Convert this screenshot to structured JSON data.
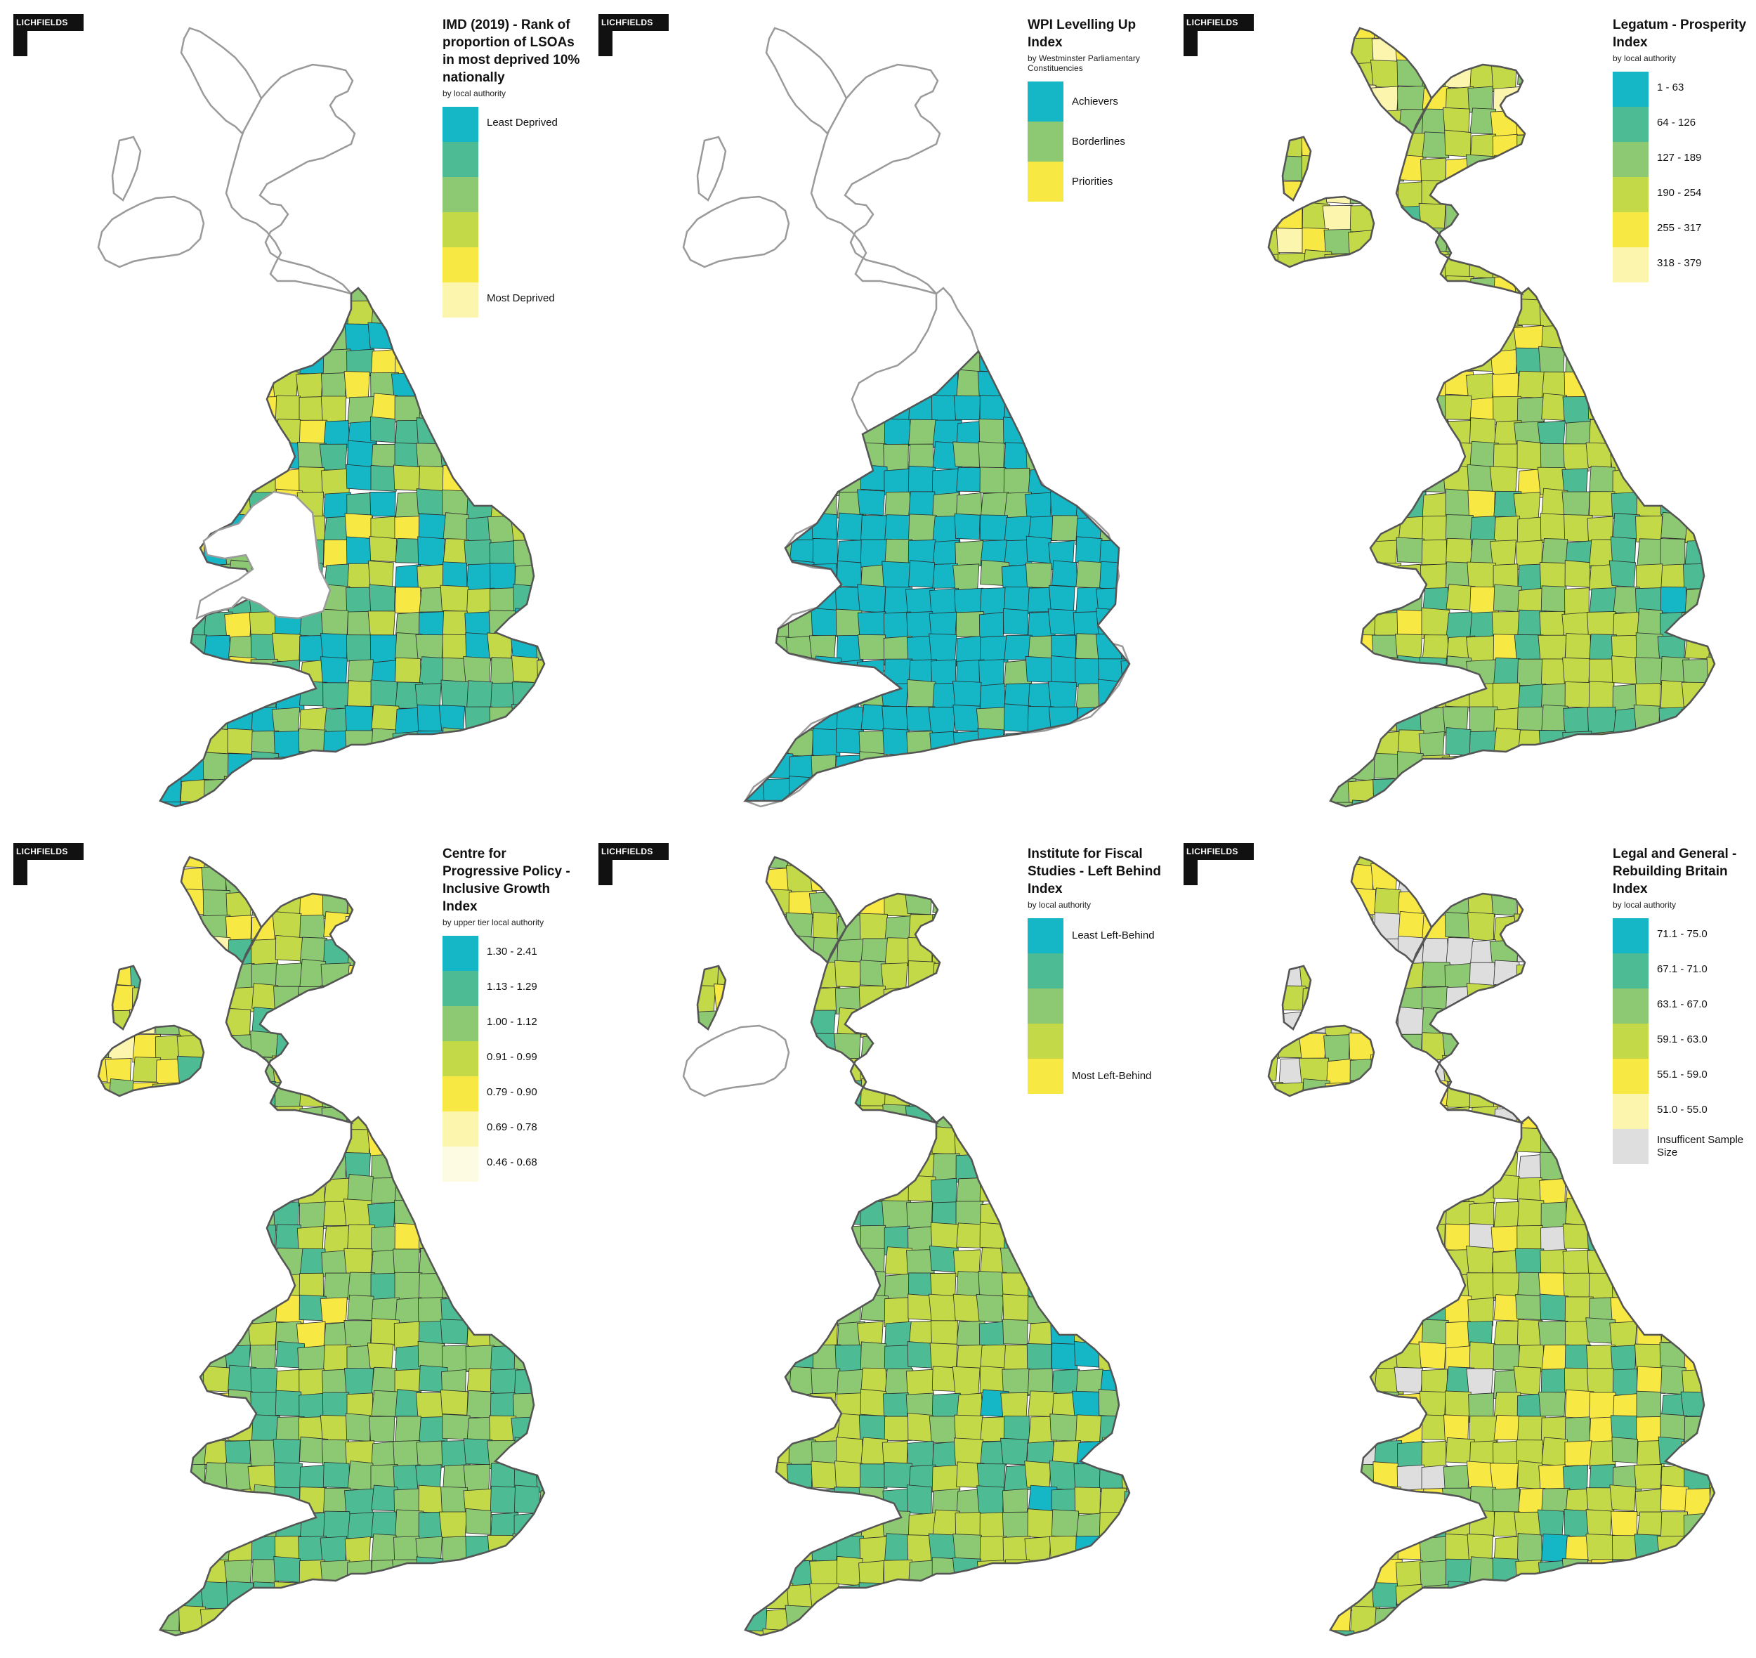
{
  "brand": {
    "logo_text": "LICHFIELDS"
  },
  "colors": {
    "teal": "#15b6c6",
    "sea_green": "#4dbc94",
    "green": "#8dc872",
    "lime": "#c4d947",
    "yellow": "#f8e843",
    "pale_yellow": "#fcf5ae",
    "cream": "#fdfbe2",
    "grey": "#dedede",
    "outline": "#9a9a9a",
    "boundary": "#2a2a2a"
  },
  "panels": [
    {
      "id": "imd",
      "title": "IMD (2019) - Rank of proportion of LSOAs in most deprived 10% nationally",
      "subtitle": "by local authority",
      "coverage": "england",
      "legend": [
        {
          "label": "Least Deprived",
          "color": "#15b6c6"
        },
        {
          "label": "",
          "color": "#4dbc94"
        },
        {
          "label": "",
          "color": "#8dc872"
        },
        {
          "label": "",
          "color": "#c4d947"
        },
        {
          "label": "",
          "color": "#f8e843"
        },
        {
          "label": "Most Deprived",
          "color": "#fcf5ae"
        }
      ]
    },
    {
      "id": "wpi",
      "title": "WPI Levelling Up Index",
      "subtitle": "by Westminster Parliamentary Constituencies",
      "coverage": "england_wales",
      "legend": [
        {
          "label": "Achievers",
          "color": "#15b6c6"
        },
        {
          "label": "Borderlines",
          "color": "#8dc872"
        },
        {
          "label": "Priorities",
          "color": "#f8e843"
        }
      ]
    },
    {
      "id": "legatum",
      "title": "Legatum - Prosperity Index",
      "subtitle": "by local authority",
      "coverage": "uk",
      "legend": [
        {
          "label": "1 - 63",
          "color": "#15b6c6"
        },
        {
          "label": "64 - 126",
          "color": "#4dbc94"
        },
        {
          "label": "127 - 189",
          "color": "#8dc872"
        },
        {
          "label": "190 - 254",
          "color": "#c4d947"
        },
        {
          "label": "255 - 317",
          "color": "#f8e843"
        },
        {
          "label": "318 - 379",
          "color": "#fcf5ae"
        }
      ]
    },
    {
      "id": "cpp",
      "title": "Centre for Progressive Policy - Inclusive Growth Index",
      "subtitle": "by upper tier local authority",
      "coverage": "uk",
      "legend": [
        {
          "label": "1.30 - 2.41",
          "color": "#15b6c6"
        },
        {
          "label": "1.13 - 1.29",
          "color": "#4dbc94"
        },
        {
          "label": "1.00 - 1.12",
          "color": "#8dc872"
        },
        {
          "label": "0.91 - 0.99",
          "color": "#c4d947"
        },
        {
          "label": "0.79 - 0.90",
          "color": "#f8e843"
        },
        {
          "label": "0.69 - 0.78",
          "color": "#fcf5ae"
        },
        {
          "label": "0.46 - 0.68",
          "color": "#fdfbe2"
        }
      ]
    },
    {
      "id": "ifs",
      "title": "Institute for Fiscal Studies - Left Behind Index",
      "subtitle": "by local authority",
      "coverage": "great_britain",
      "legend": [
        {
          "label": "Least Left-Behind",
          "color": "#15b6c6"
        },
        {
          "label": "",
          "color": "#4dbc94"
        },
        {
          "label": "",
          "color": "#8dc872"
        },
        {
          "label": "",
          "color": "#c4d947"
        },
        {
          "label": "Most Left-Behind",
          "color": "#f8e843"
        }
      ]
    },
    {
      "id": "lg",
      "title": "Legal and General - Rebuilding Britain Index",
      "subtitle": "by local authority",
      "coverage": "uk",
      "legend": [
        {
          "label": "71.1 - 75.0",
          "color": "#15b6c6"
        },
        {
          "label": "67.1 - 71.0",
          "color": "#4dbc94"
        },
        {
          "label": "63.1 - 67.0",
          "color": "#8dc872"
        },
        {
          "label": "59.1 - 63.0",
          "color": "#c4d947"
        },
        {
          "label": "55.1 - 59.0",
          "color": "#f8e843"
        },
        {
          "label": "51.0 - 55.0",
          "color": "#fcf5ae"
        },
        {
          "label": "Insufficent Sample Size",
          "color": "#dedede"
        }
      ]
    }
  ]
}
